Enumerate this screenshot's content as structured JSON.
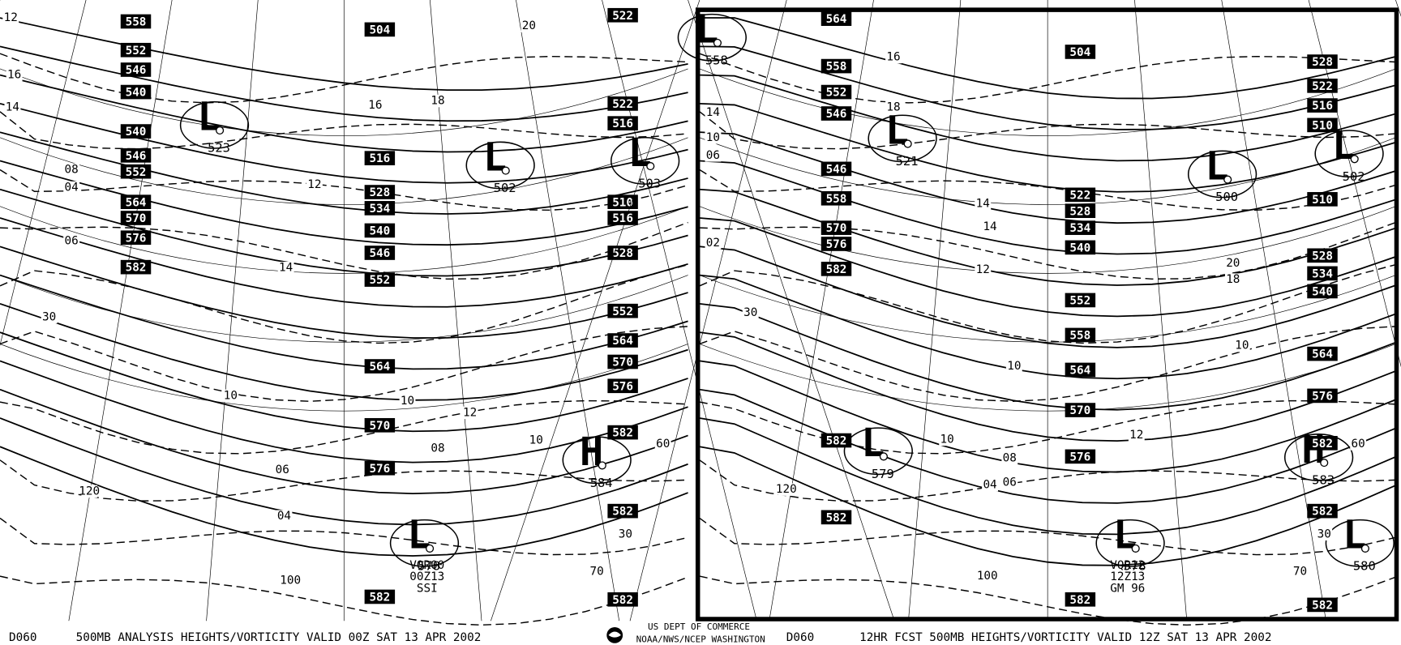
{
  "panels": [
    {
      "boxed_labels": [
        "558",
        "552",
        "546",
        "540",
        "540",
        "546",
        "552",
        "564",
        "570",
        "576",
        "582",
        "504",
        "516",
        "528",
        "534",
        "540",
        "546",
        "552",
        "564",
        "570",
        "576",
        "582",
        "522",
        "522",
        "516",
        "510",
        "516",
        "528",
        "552",
        "564",
        "570",
        "576",
        "582",
        "582",
        "582"
      ],
      "centers": [
        {
          "symbol": "L",
          "value": "523"
        },
        {
          "symbol": "L",
          "value": "502"
        },
        {
          "symbol": "L",
          "value": "503"
        },
        {
          "symbol": "H",
          "value": "584"
        },
        {
          "symbol": "L",
          "value": "578"
        }
      ],
      "contour_labels": [
        "30",
        "120",
        "100",
        "30",
        "70",
        "60",
        "12",
        "16",
        "14",
        "08",
        "04",
        "06",
        "10",
        "12",
        "14",
        "16",
        "18",
        "20",
        "10",
        "08",
        "06",
        "04",
        "12",
        "10"
      ],
      "station": [
        "VQR00",
        "00Z13",
        "SSI"
      ],
      "footer": {
        "code": "D060",
        "text": "500MB ANALYSIS  HEIGHTS/VORTICITY VALID 00Z SAT 13 APR 2002"
      }
    },
    {
      "boxed_labels": [
        "564",
        "558",
        "552",
        "546",
        "546",
        "558",
        "570",
        "576",
        "582",
        "582",
        "582",
        "504",
        "522",
        "528",
        "534",
        "540",
        "552",
        "558",
        "564",
        "570",
        "576",
        "582",
        "528",
        "522",
        "516",
        "510",
        "510",
        "528",
        "534",
        "540",
        "564",
        "576",
        "582",
        "582",
        "582"
      ],
      "centers": [
        {
          "symbol": "L",
          "value": "521"
        },
        {
          "symbol": "L",
          "value": "500"
        },
        {
          "symbol": "L",
          "value": "502"
        },
        {
          "symbol": "L",
          "value": "579"
        },
        {
          "symbol": "H",
          "value": "583"
        },
        {
          "symbol": "L",
          "value": "578"
        },
        {
          "symbol": "L",
          "value": "580"
        },
        {
          "symbol": "L",
          "value": "558"
        }
      ],
      "contour_labels": [
        "30",
        "120",
        "100",
        "30",
        "70",
        "60",
        "14",
        "10",
        "06",
        "02",
        "16",
        "18",
        "14",
        "12",
        "10",
        "08",
        "06",
        "04",
        "10",
        "14",
        "18",
        "20",
        "12",
        "10"
      ],
      "station": [
        "VQR12",
        "12Z13",
        "GM 96"
      ],
      "footer": {
        "code": "D060",
        "text": "12HR FCST 500MB  HEIGHTS/VORTICITY VALID 12Z SAT 13 APR 2002"
      }
    }
  ],
  "agency": {
    "line1": "US DEPT OF COMMERCE",
    "line2": "NOAA/NWS/NCEP WASHINGTON"
  }
}
